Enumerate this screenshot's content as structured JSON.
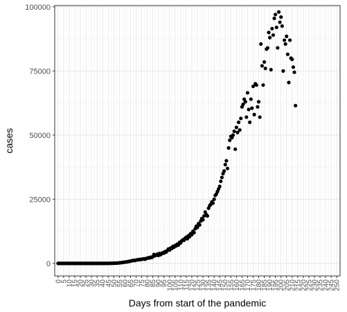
{
  "chart_data": {
    "type": "scatter",
    "title": "",
    "xlabel": "Days from start of the pandemic",
    "ylabel": "cases",
    "xlim": [
      -3,
      253
    ],
    "ylim": [
      -4900,
      100500
    ],
    "x_ticks": [
      0,
      5,
      10,
      15,
      20,
      25,
      30,
      35,
      40,
      45,
      50,
      55,
      60,
      65,
      70,
      75,
      80,
      85,
      90,
      95,
      100,
      105,
      110,
      115,
      120,
      125,
      130,
      135,
      140,
      145,
      150,
      155,
      160,
      165,
      170,
      175,
      180,
      185,
      190,
      195,
      200,
      205,
      210,
      215,
      220,
      225,
      230,
      235,
      240,
      245,
      250
    ],
    "y_ticks": [
      0,
      25000,
      50000,
      75000,
      100000
    ],
    "grid": true,
    "legend": "none",
    "point_color": "#000000",
    "points": [
      [
        0,
        0
      ],
      [
        1,
        0
      ],
      [
        2,
        0
      ],
      [
        3,
        0
      ],
      [
        4,
        0
      ],
      [
        5,
        0
      ],
      [
        6,
        0
      ],
      [
        7,
        0
      ],
      [
        8,
        0
      ],
      [
        9,
        0
      ],
      [
        10,
        0
      ],
      [
        11,
        0
      ],
      [
        12,
        0
      ],
      [
        13,
        0
      ],
      [
        14,
        0
      ],
      [
        15,
        0
      ],
      [
        16,
        0
      ],
      [
        17,
        0
      ],
      [
        18,
        0
      ],
      [
        19,
        0
      ],
      [
        20,
        0
      ],
      [
        21,
        0
      ],
      [
        22,
        0
      ],
      [
        23,
        0
      ],
      [
        24,
        0
      ],
      [
        25,
        0
      ],
      [
        26,
        0
      ],
      [
        27,
        0
      ],
      [
        28,
        0
      ],
      [
        29,
        0
      ],
      [
        30,
        0
      ],
      [
        31,
        0
      ],
      [
        32,
        0
      ],
      [
        33,
        0
      ],
      [
        34,
        0
      ],
      [
        35,
        0
      ],
      [
        36,
        0
      ],
      [
        37,
        0
      ],
      [
        38,
        0
      ],
      [
        39,
        0
      ],
      [
        40,
        0
      ],
      [
        41,
        0
      ],
      [
        42,
        0
      ],
      [
        43,
        10
      ],
      [
        44,
        15
      ],
      [
        45,
        20
      ],
      [
        46,
        20
      ],
      [
        47,
        30
      ],
      [
        48,
        40
      ],
      [
        49,
        50
      ],
      [
        50,
        60
      ],
      [
        51,
        80
      ],
      [
        52,
        100
      ],
      [
        53,
        120
      ],
      [
        54,
        150
      ],
      [
        55,
        200
      ],
      [
        56,
        250
      ],
      [
        57,
        300
      ],
      [
        58,
        380
      ],
      [
        59,
        420
      ],
      [
        60,
        500
      ],
      [
        61,
        550
      ],
      [
        62,
        600
      ],
      [
        63,
        700
      ],
      [
        64,
        800
      ],
      [
        65,
        900
      ],
      [
        66,
        1000
      ],
      [
        67,
        1100
      ],
      [
        68,
        1200
      ],
      [
        69,
        1150
      ],
      [
        70,
        1300
      ],
      [
        71,
        1350
      ],
      [
        72,
        1500
      ],
      [
        73,
        1400
      ],
      [
        74,
        1600
      ],
      [
        75,
        1550
      ],
      [
        76,
        1700
      ],
      [
        77,
        1800
      ],
      [
        78,
        1600
      ],
      [
        79,
        1900
      ],
      [
        80,
        2000
      ],
      [
        81,
        2200
      ],
      [
        82,
        2100
      ],
      [
        83,
        2400
      ],
      [
        84,
        2300
      ],
      [
        85,
        2600
      ],
      [
        86,
        3500
      ],
      [
        87,
        3000
      ],
      [
        88,
        3200
      ],
      [
        89,
        3600
      ],
      [
        90,
        3100
      ],
      [
        91,
        3900
      ],
      [
        92,
        3400
      ],
      [
        93,
        3800
      ],
      [
        94,
        4200
      ],
      [
        95,
        4000
      ],
      [
        96,
        4600
      ],
      [
        97,
        4400
      ],
      [
        98,
        5000
      ],
      [
        99,
        5600
      ],
      [
        100,
        5200
      ],
      [
        101,
        6000
      ],
      [
        102,
        5800
      ],
      [
        103,
        6600
      ],
      [
        104,
        6300
      ],
      [
        105,
        7000
      ],
      [
        106,
        6800
      ],
      [
        107,
        7500
      ],
      [
        108,
        7200
      ],
      [
        109,
        8200
      ],
      [
        110,
        8000
      ],
      [
        111,
        8800
      ],
      [
        112,
        9200
      ],
      [
        113,
        9000
      ],
      [
        114,
        9800
      ],
      [
        115,
        10200
      ],
      [
        116,
        9600
      ],
      [
        117,
        10800
      ],
      [
        118,
        10400
      ],
      [
        119,
        11600
      ],
      [
        120,
        11200
      ],
      [
        121,
        12500
      ],
      [
        122,
        12000
      ],
      [
        123,
        13500
      ],
      [
        124,
        14500
      ],
      [
        125,
        14000
      ],
      [
        126,
        15500
      ],
      [
        127,
        15000
      ],
      [
        128,
        16500
      ],
      [
        129,
        17500
      ],
      [
        130,
        17000
      ],
      [
        131,
        18500
      ],
      [
        132,
        20000
      ],
      [
        133,
        19000
      ],
      [
        134,
        18500
      ],
      [
        135,
        21500
      ],
      [
        136,
        22500
      ],
      [
        137,
        23000
      ],
      [
        138,
        24000
      ],
      [
        139,
        23500
      ],
      [
        140,
        25000
      ],
      [
        141,
        26500
      ],
      [
        142,
        27000
      ],
      [
        143,
        28000
      ],
      [
        144,
        29000
      ],
      [
        145,
        30000
      ],
      [
        146,
        32000
      ],
      [
        147,
        33500
      ],
      [
        148,
        35000
      ],
      [
        149,
        36000
      ],
      [
        150,
        38500
      ],
      [
        151,
        40000
      ],
      [
        152,
        37000
      ],
      [
        153,
        45000
      ],
      [
        154,
        48000
      ],
      [
        155,
        49500
      ],
      [
        156,
        49000
      ],
      [
        157,
        50000
      ],
      [
        158,
        51500
      ],
      [
        159,
        44500
      ],
      [
        160,
        53000
      ],
      [
        161,
        51000
      ],
      [
        162,
        55000
      ],
      [
        163,
        52000
      ],
      [
        164,
        56500
      ],
      [
        165,
        61000
      ],
      [
        166,
        62000
      ],
      [
        167,
        64000
      ],
      [
        168,
        63000
      ],
      [
        169,
        57000
      ],
      [
        170,
        66500
      ],
      [
        171,
        60000
      ],
      [
        172,
        55000
      ],
      [
        173,
        64000
      ],
      [
        174,
        60500
      ],
      [
        175,
        69000
      ],
      [
        176,
        58000
      ],
      [
        177,
        70000
      ],
      [
        178,
        69500
      ],
      [
        179,
        61000
      ],
      [
        180,
        63000
      ],
      [
        181,
        57000
      ],
      [
        182,
        85500
      ],
      [
        183,
        77000
      ],
      [
        184,
        69500
      ],
      [
        185,
        78500
      ],
      [
        186,
        76000
      ],
      [
        187,
        83500
      ],
      [
        188,
        84000
      ],
      [
        189,
        90000
      ],
      [
        190,
        88000
      ],
      [
        191,
        75500
      ],
      [
        192,
        91500
      ],
      [
        193,
        89000
      ],
      [
        194,
        95500
      ],
      [
        195,
        97000
      ],
      [
        196,
        92000
      ],
      [
        197,
        84000
      ],
      [
        198,
        98000
      ],
      [
        199,
        94000
      ],
      [
        200,
        96000
      ],
      [
        201,
        92500
      ],
      [
        202,
        75000
      ],
      [
        203,
        87000
      ],
      [
        204,
        85500
      ],
      [
        205,
        88500
      ],
      [
        206,
        81500
      ],
      [
        207,
        70500
      ],
      [
        208,
        87000
      ],
      [
        209,
        80000
      ],
      [
        210,
        79500
      ],
      [
        211,
        76500
      ],
      [
        212,
        74500
      ],
      [
        213,
        61500
      ]
    ]
  }
}
